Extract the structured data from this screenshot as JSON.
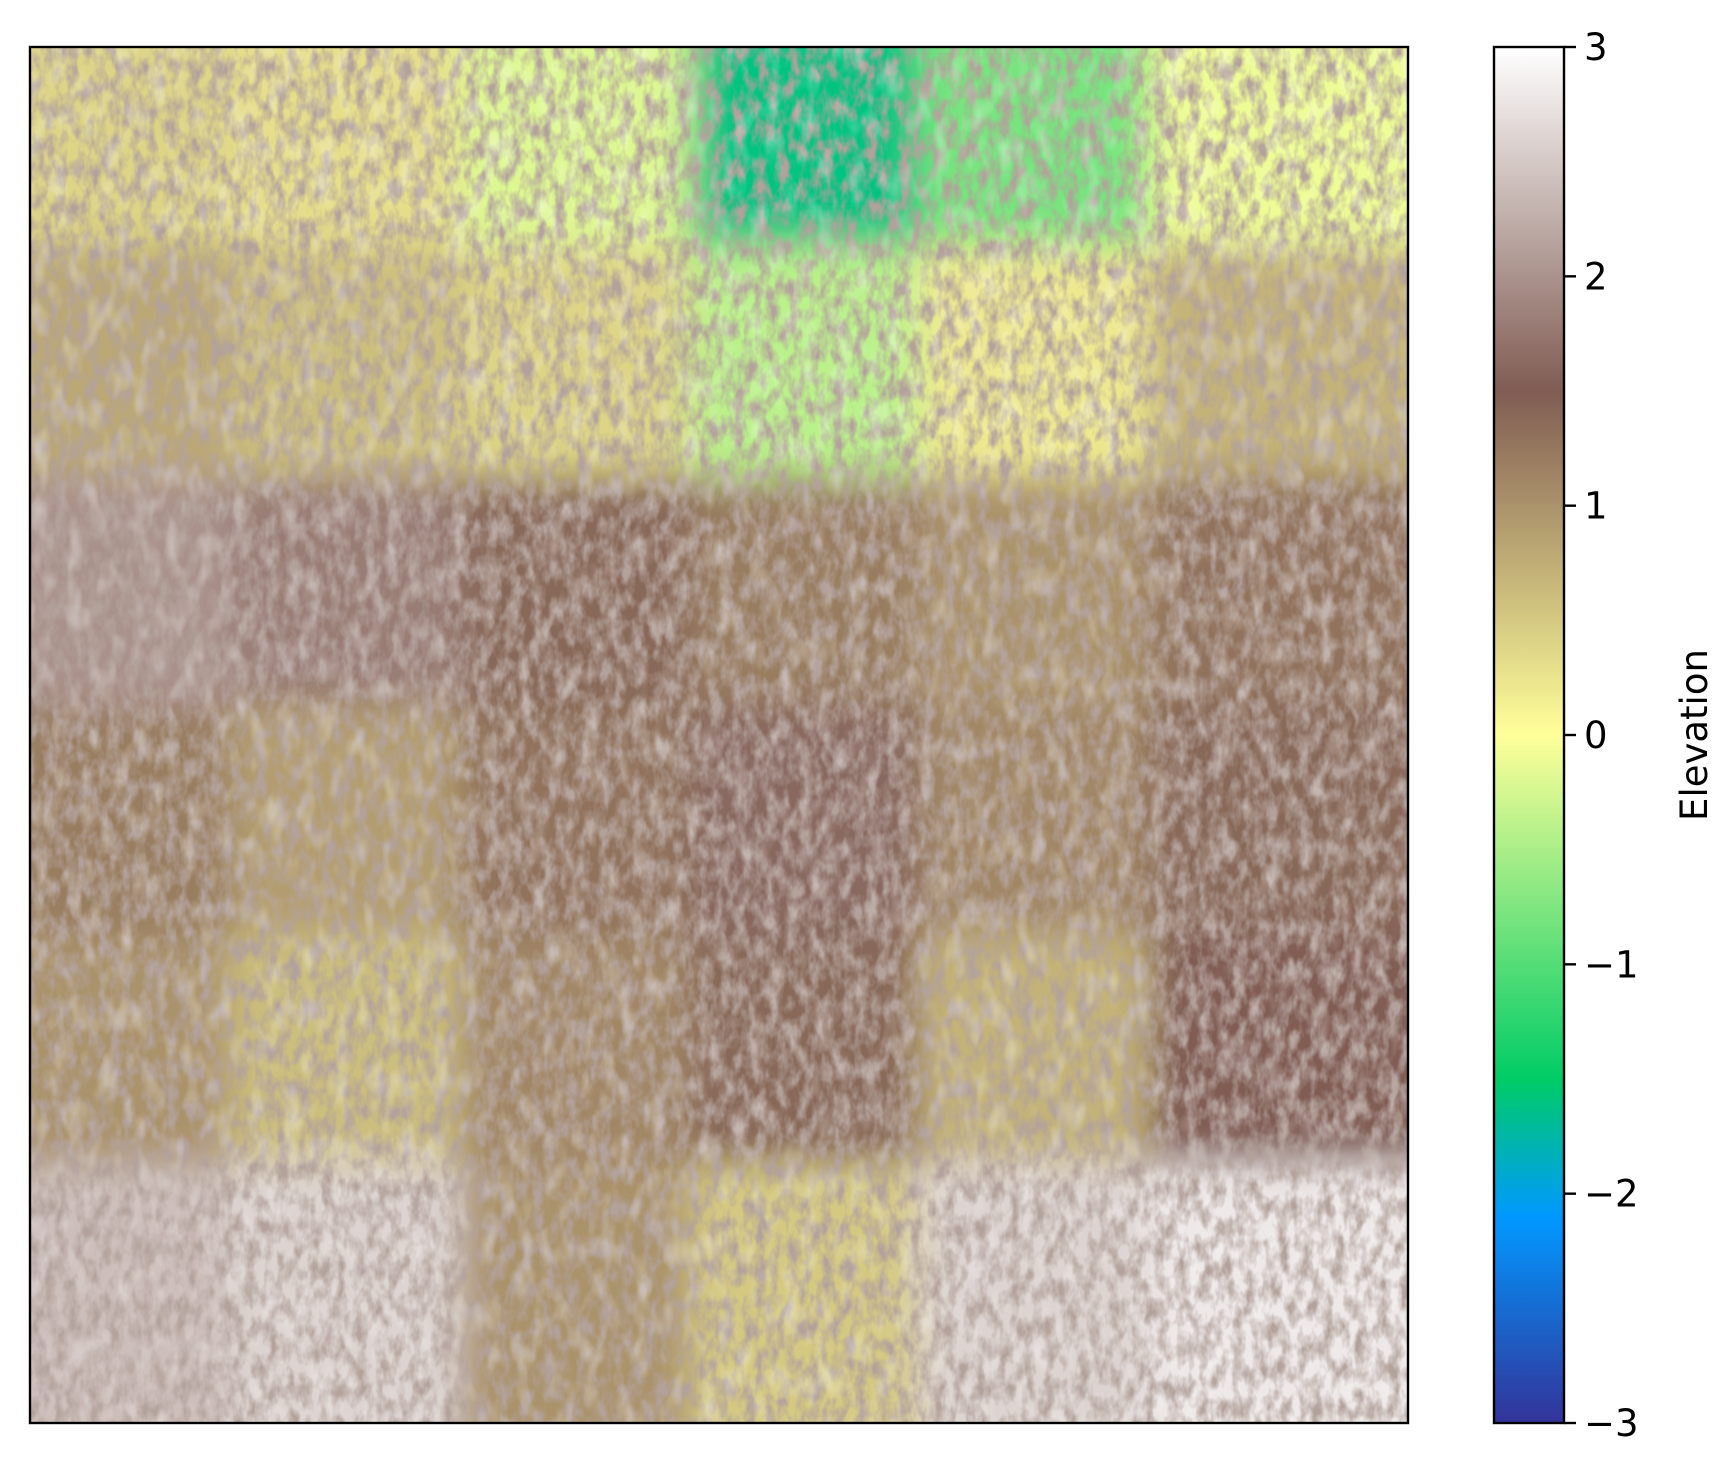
{
  "chart_data": {
    "type": "heatmap",
    "title": "",
    "xlabel": "",
    "ylabel": "",
    "axes_ticks_visible": false,
    "colormap": "terrain",
    "colormap_stops": [
      {
        "value": -3.0,
        "color": "#333399"
      },
      {
        "value": -2.1,
        "color": "#0099ff"
      },
      {
        "value": -1.5,
        "color": "#00cc66"
      },
      {
        "value": 0.0,
        "color": "#ffff99"
      },
      {
        "value": 1.5,
        "color": "#805c53"
      },
      {
        "value": 3.0,
        "color": "#ffffff"
      }
    ],
    "value_range": [
      -3,
      3
    ],
    "contour_lines": true,
    "region_summary": {
      "grid_shape": [
        6,
        6
      ],
      "approx_mean_values": [
        [
          0.4,
          0.3,
          -0.2,
          -1.6,
          -0.8,
          -0.1
        ],
        [
          0.8,
          0.6,
          0.4,
          -0.4,
          0.2,
          0.7
        ],
        [
          2.0,
          1.8,
          1.4,
          1.2,
          1.0,
          1.3
        ],
        [
          1.2,
          0.9,
          1.3,
          1.6,
          1.1,
          1.4
        ],
        [
          1.0,
          0.6,
          1.1,
          1.4,
          0.7,
          1.5
        ],
        [
          2.4,
          2.6,
          1.0,
          0.5,
          2.6,
          2.8
        ]
      ]
    },
    "colorbar": {
      "label": "Elevation",
      "ticks": [
        3,
        2,
        1,
        0,
        -1,
        -2,
        -3
      ],
      "tick_labels": [
        "3",
        "2",
        "1",
        "0",
        "−1",
        "−2",
        "−3"
      ]
    }
  }
}
